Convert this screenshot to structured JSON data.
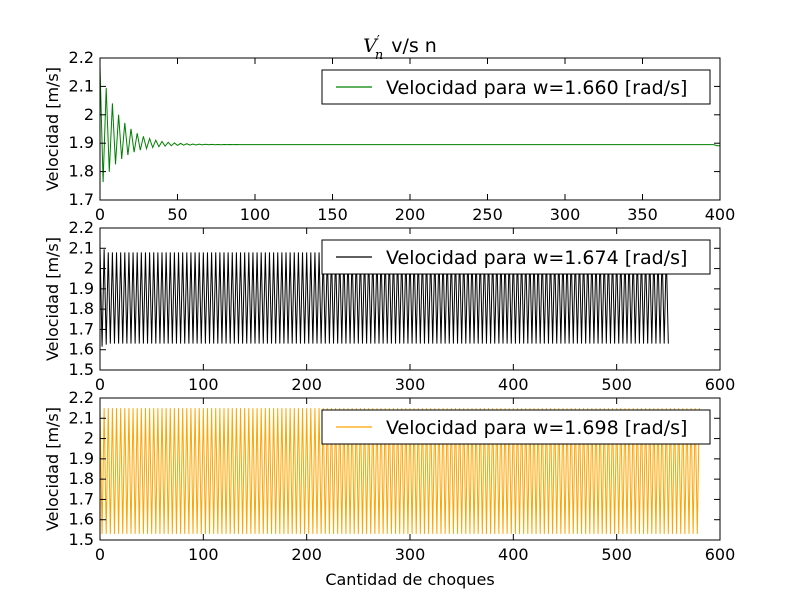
{
  "title": {
    "math": "V",
    "sub": "n",
    "prime": "′",
    "suffix": "v/s n"
  },
  "xlabel": "Cantidad de choques",
  "chart_data": [
    {
      "type": "line",
      "ylabel": "Velocidad [m/s]",
      "xlim": [
        0,
        400
      ],
      "ylim": [
        1.7,
        2.2
      ],
      "xticks": [
        0,
        50,
        100,
        150,
        200,
        250,
        300,
        350,
        400
      ],
      "yticks": [
        1.7,
        1.8,
        1.9,
        2.0,
        2.1,
        2.2
      ],
      "series": [
        {
          "name": "Velocidad para w=1.660 [rad/s]",
          "color": "#008000",
          "pattern": "damped_oscillation",
          "start_x": 0,
          "end_x": 400,
          "initial_max": 2.17,
          "initial_min": 1.74,
          "settled_value": 1.895,
          "settle_by_x": 40,
          "final_dip_x": 398
        }
      ],
      "legend": "top-right"
    },
    {
      "type": "line",
      "ylabel": "Velocidad [m/s]",
      "xlim": [
        0,
        600
      ],
      "ylim": [
        1.5,
        2.2
      ],
      "xticks": [
        0,
        100,
        200,
        300,
        400,
        500,
        600
      ],
      "yticks": [
        1.5,
        1.6,
        1.7,
        1.8,
        1.9,
        2.0,
        2.1,
        2.2
      ],
      "series": [
        {
          "name": "Velocidad para w=1.674 [rad/s]",
          "color": "#000000",
          "pattern": "sustained_oscillation",
          "start_x": 0,
          "end_x": 550,
          "max": 2.08,
          "min": 1.63,
          "initial_max": 2.11,
          "initial_min": 1.61
        }
      ],
      "legend": "top-right"
    },
    {
      "type": "line",
      "ylabel": "Velocidad [m/s]",
      "xlim": [
        0,
        600
      ],
      "ylim": [
        1.5,
        2.2
      ],
      "xticks": [
        0,
        100,
        200,
        300,
        400,
        500,
        600
      ],
      "yticks": [
        1.5,
        1.6,
        1.7,
        1.8,
        1.9,
        2.0,
        2.1,
        2.2
      ],
      "series": [
        {
          "name": "Velocidad para w=1.698 [rad/s]",
          "color": "#FFA500",
          "pattern": "sustained_oscillation",
          "start_x": 0,
          "end_x": 580,
          "max": 2.15,
          "min": 1.53
        }
      ],
      "legend": "top-right"
    }
  ]
}
